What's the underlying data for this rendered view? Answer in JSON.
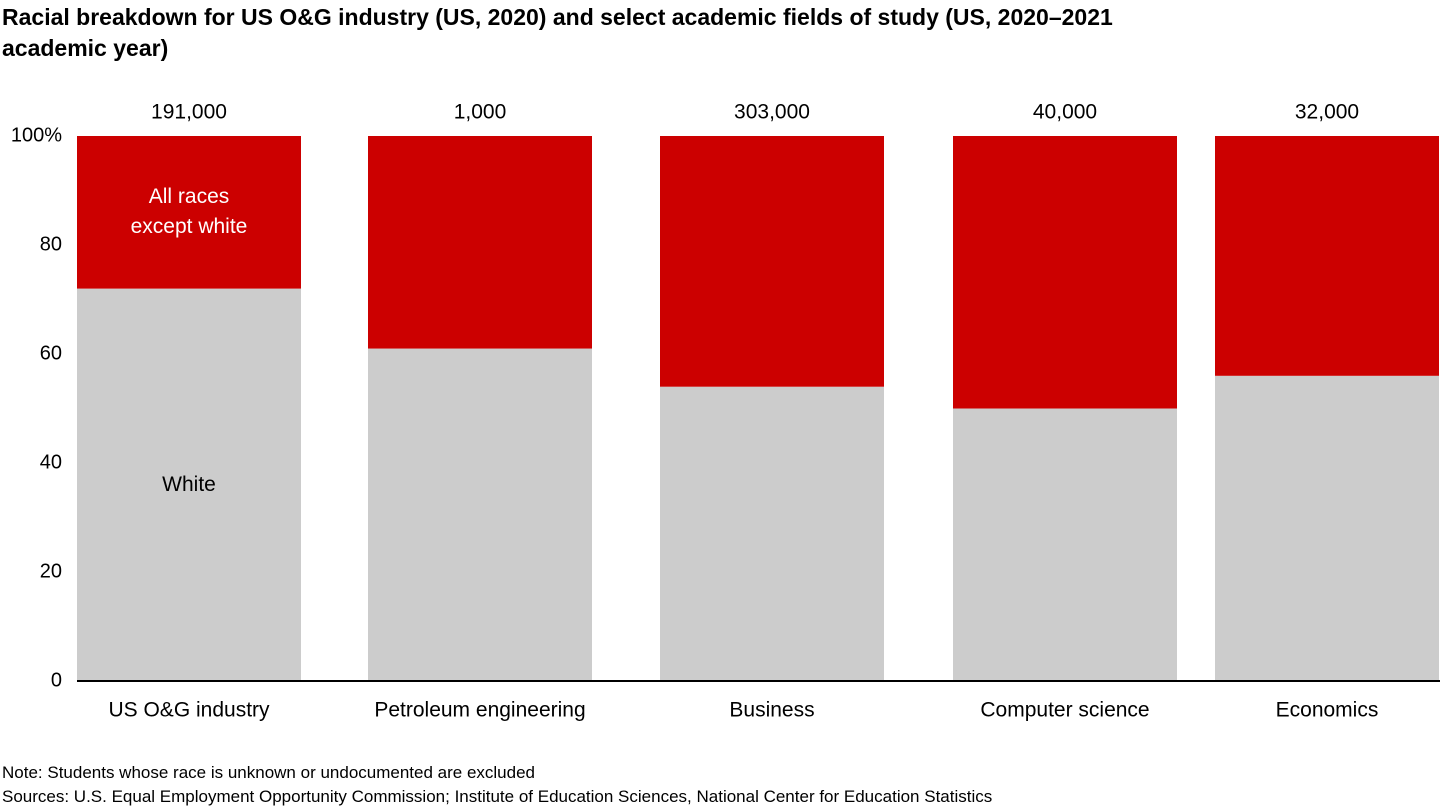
{
  "chart_data": {
    "type": "stacked-bar",
    "title": "Racial breakdown for US O&G industry (US, 2020) and select academic fields of study (US, 2020–2021 academic year)",
    "categories": [
      "US O&G industry",
      "Petroleum engineering",
      "Business",
      "Computer science",
      "Economics"
    ],
    "series": [
      {
        "name": "White",
        "color": "#cccccc",
        "values": [
          72,
          61,
          54,
          50,
          56
        ]
      },
      {
        "name": "All races except white",
        "color": "#cc0000",
        "values": [
          28,
          39,
          46,
          50,
          44
        ]
      }
    ],
    "totals": {
      "values": [
        191000,
        1000,
        303000,
        40000,
        32000
      ],
      "value_labels": [
        "191,000",
        "1,000",
        "303,000",
        "40,000",
        "32,000"
      ]
    },
    "ylim": [
      0,
      100
    ],
    "yticks": [
      0,
      20,
      40,
      60,
      80,
      {
        "value": 100,
        "label": "100%"
      }
    ],
    "grid": false,
    "notes": [
      "Note: Students whose race is unknown or undocumented are excluded",
      "Sources: U.S. Equal Employment Opportunity Commission; Institute of Education Sciences, National Center for Education Statistics"
    ]
  }
}
